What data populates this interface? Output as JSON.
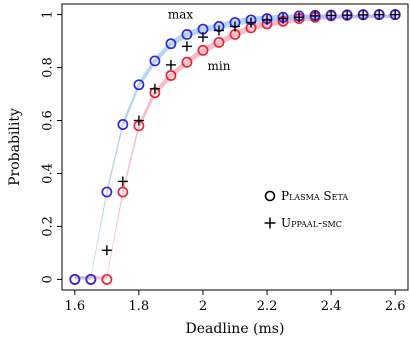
{
  "chart_data": {
    "type": "scatter",
    "xlabel": "Deadline (ms)",
    "ylabel": "Probability",
    "xlim": [
      1.56,
      2.64
    ],
    "ylim": [
      -0.04,
      1.04
    ],
    "xticks": [
      "1.6",
      "1.8",
      "2",
      "2.2",
      "2.4",
      "2.6"
    ],
    "xtick_values": [
      1.6,
      1.8,
      2.0,
      2.2,
      2.4,
      2.6
    ],
    "yticks": [
      "0",
      "0.2",
      "0.4",
      "0.6",
      "0.8",
      "1"
    ],
    "ytick_values": [
      0,
      0.2,
      0.4,
      0.6,
      0.8,
      1.0
    ],
    "colors": {
      "max": "#3322ee",
      "min": "#ee2233",
      "band_max": "#9bc8e8",
      "band_min": "#f3a8b6",
      "cross": "#000000"
    },
    "annotations": [
      {
        "text": "max",
        "x": 1.93,
        "y": 0.985
      },
      {
        "text": "min",
        "x": 2.05,
        "y": 0.79
      }
    ],
    "legend": [
      {
        "label": "Plasma Seta",
        "marker": "circle"
      },
      {
        "label": "Uppaal-smc",
        "marker": "plus"
      }
    ],
    "series": [
      {
        "name": "max",
        "x": [
          1.6,
          1.65,
          1.7,
          1.75,
          1.8,
          1.85,
          1.9,
          1.95,
          2.0,
          2.05,
          2.1,
          2.15,
          2.2,
          2.25,
          2.3,
          2.35,
          2.4,
          2.45,
          2.5,
          2.55,
          2.6
        ],
        "y": [
          0,
          0,
          0.33,
          0.585,
          0.735,
          0.825,
          0.89,
          0.925,
          0.945,
          0.955,
          0.97,
          0.98,
          0.985,
          0.99,
          0.995,
          0.997,
          0.998,
          0.999,
          1.0,
          1.0,
          1.0
        ]
      },
      {
        "name": "min",
        "x": [
          1.6,
          1.65,
          1.7,
          1.75,
          1.8,
          1.85,
          1.9,
          1.95,
          2.0,
          2.05,
          2.1,
          2.15,
          2.2,
          2.25,
          2.3,
          2.35,
          2.4,
          2.45,
          2.5,
          2.55,
          2.6
        ],
        "y": [
          0,
          0,
          0,
          0.33,
          0.58,
          0.705,
          0.77,
          0.82,
          0.865,
          0.895,
          0.925,
          0.95,
          0.965,
          0.975,
          0.985,
          0.99,
          0.995,
          0.997,
          0.999,
          1.0,
          1.0
        ]
      },
      {
        "name": "UPPAAL-SMC",
        "x": [
          1.7,
          1.75,
          1.8,
          1.85,
          1.9,
          1.95,
          2.0,
          2.05,
          2.1,
          2.15,
          2.2,
          2.25,
          2.3,
          2.35,
          2.4,
          2.45,
          2.5,
          2.55,
          2.6
        ],
        "y": [
          0.11,
          0.37,
          0.6,
          0.72,
          0.81,
          0.88,
          0.915,
          0.94,
          0.955,
          0.97,
          0.98,
          0.985,
          0.99,
          0.995,
          0.997,
          0.998,
          0.999,
          1.0,
          1.0
        ]
      }
    ]
  }
}
